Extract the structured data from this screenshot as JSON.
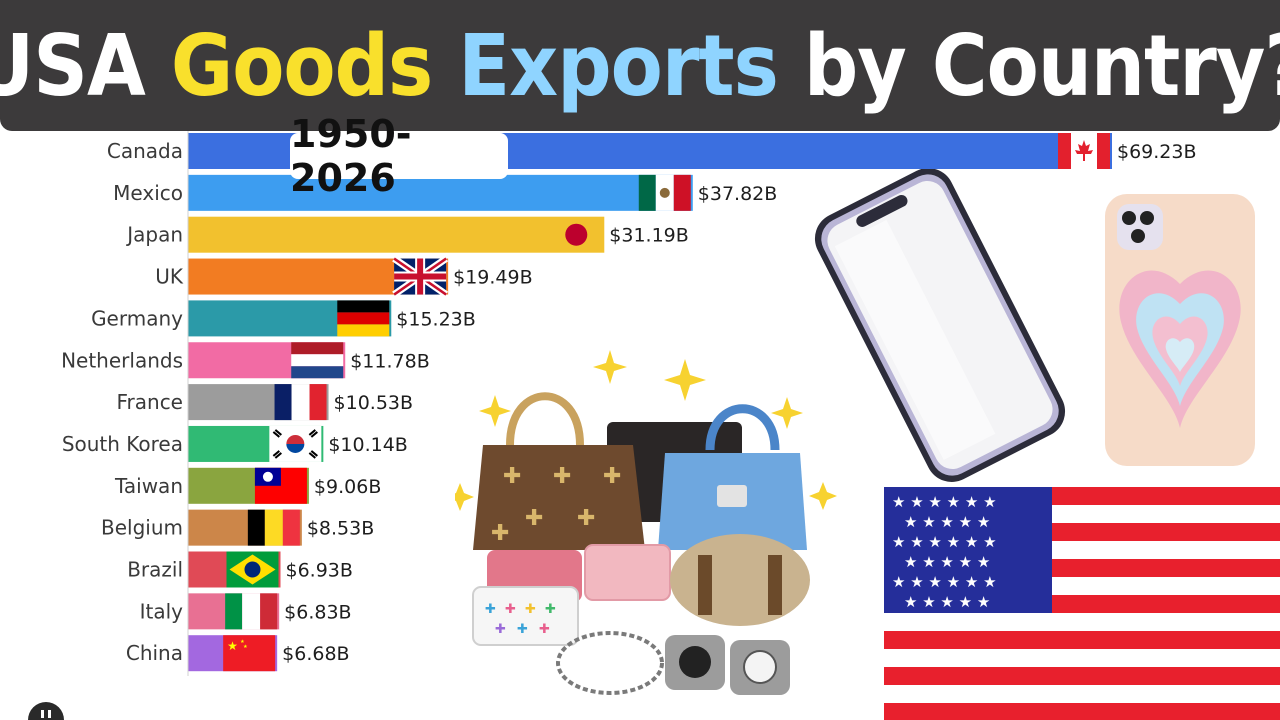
{
  "title": {
    "words": [
      {
        "text": "USA",
        "color": "#ffffff"
      },
      {
        "text": "Goods",
        "color": "#f9e02c"
      },
      {
        "text": "Exports",
        "color": "#8fd4ff"
      },
      {
        "text": "by",
        "color": "#ffffff"
      },
      {
        "text": "Country?",
        "color": "#ffffff"
      }
    ]
  },
  "year_badge": "1950-2026",
  "chart_data": {
    "type": "bar",
    "orientation": "horizontal",
    "categories": [
      "Canada",
      "Mexico",
      "Japan",
      "UK",
      "Germany",
      "Netherlands",
      "France",
      "South Korea",
      "Taiwan",
      "Belgium",
      "Brazil",
      "Italy",
      "China"
    ],
    "values": [
      69.23,
      37.82,
      31.19,
      19.49,
      15.23,
      11.78,
      10.53,
      10.14,
      9.06,
      8.53,
      6.93,
      6.83,
      6.68
    ],
    "value_labels": [
      "$69.23B",
      "$37.82B",
      "$31.19B",
      "$19.49B",
      "$15.23B",
      "$11.78B",
      "$10.53B",
      "$10.14B",
      "$9.06B",
      "$8.53B",
      "$6.93B",
      "$6.83B",
      "$6.68B"
    ],
    "colors": [
      "#3b6fe0",
      "#3d9df0",
      "#f2c12e",
      "#f27c22",
      "#2b9aa8",
      "#f26ba4",
      "#9c9c9c",
      "#30ba74",
      "#8aa53f",
      "#cc8649",
      "#e04a56",
      "#e87093",
      "#a368e0"
    ],
    "flags": [
      "canada-flag-icon",
      "mexico-flag-icon",
      "japan-flag-icon",
      "uk-flag-icon",
      "germany-flag-icon",
      "netherlands-flag-icon",
      "france-flag-icon",
      "south-korea-flag-icon",
      "taiwan-flag-icon",
      "belgium-flag-icon",
      "brazil-flag-icon",
      "italy-flag-icon",
      "china-flag-icon"
    ],
    "unit": "USD billions",
    "xlim": [
      0,
      69.23
    ],
    "grid": false,
    "legend": "none",
    "title": "USA Goods Exports by Country?"
  },
  "decorations": [
    "smartphone-icon",
    "phone-case-icon",
    "handbags-icon",
    "sparkle-icon",
    "usa-flag-icon"
  ]
}
